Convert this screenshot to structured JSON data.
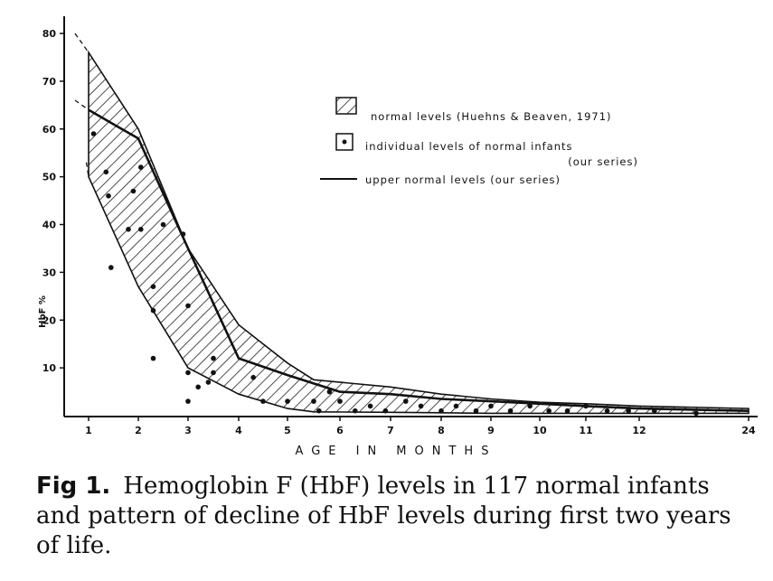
{
  "chart_data": {
    "type": "area",
    "xlabel": "AGE IN MONTHS",
    "ylabel": "HbF %",
    "x_ticks": [
      {
        "label": "1",
        "value": 1
      },
      {
        "label": "2",
        "value": 2
      },
      {
        "label": "3",
        "value": 3
      },
      {
        "label": "4",
        "value": 4
      },
      {
        "label": "5",
        "value": 5
      },
      {
        "label": "6",
        "value": 6
      },
      {
        "label": "7",
        "value": 7
      },
      {
        "label": "8",
        "value": 8
      },
      {
        "label": "9",
        "value": 9
      },
      {
        "label": "10",
        "value": 10
      },
      {
        "label": "11",
        "value": 11
      },
      {
        "label": "12",
        "value": 12
      },
      {
        "label": "24",
        "value": 24
      }
    ],
    "y_ticks": [
      10,
      20,
      30,
      40,
      50,
      60,
      70,
      80
    ],
    "ylim": [
      0,
      82
    ],
    "legend": {
      "band": "normal levels (Huehns & Beaven, 1971)",
      "dots_line1": "individual levels of normal infants",
      "dots_line2": "(our series)",
      "line": "upper normal levels (our series)"
    },
    "series": [
      {
        "name": "normal levels (Huehns & Beaven, 1971)",
        "kind": "band",
        "upper": [
          [
            1,
            76
          ],
          [
            2,
            60
          ],
          [
            3,
            35
          ],
          [
            4,
            19
          ],
          [
            5,
            11
          ],
          [
            5.5,
            7.5
          ],
          [
            7,
            6
          ],
          [
            8,
            4.5
          ],
          [
            9,
            3.5
          ],
          [
            10,
            2.8
          ],
          [
            11,
            2.5
          ],
          [
            12,
            2.0
          ],
          [
            24,
            1.5
          ]
        ],
        "lower": [
          [
            1,
            50
          ],
          [
            2,
            27
          ],
          [
            3,
            10
          ],
          [
            4,
            4.5
          ],
          [
            5,
            1.5
          ],
          [
            5.5,
            0.8
          ],
          [
            7,
            0.7
          ],
          [
            8,
            0.6
          ],
          [
            9,
            0.5
          ],
          [
            10,
            0.5
          ],
          [
            11,
            0.5
          ],
          [
            12,
            0.5
          ],
          [
            24,
            0.5
          ]
        ]
      },
      {
        "name": "upper normal levels (our series)",
        "kind": "line",
        "points": [
          [
            1,
            64
          ],
          [
            1.5,
            61
          ],
          [
            2,
            58
          ],
          [
            3,
            35
          ],
          [
            4,
            12
          ],
          [
            5,
            8.5
          ],
          [
            6,
            5
          ],
          [
            7,
            4.5
          ],
          [
            8,
            3.5
          ],
          [
            9,
            3
          ],
          [
            10,
            2.5
          ],
          [
            11,
            2
          ],
          [
            12,
            1.5
          ],
          [
            24,
            1
          ]
        ]
      },
      {
        "name": "individual levels of normal infants (our series)",
        "kind": "scatter",
        "points": [
          [
            1.1,
            59
          ],
          [
            1.35,
            51
          ],
          [
            1.4,
            46
          ],
          [
            1.45,
            31
          ],
          [
            1.8,
            39
          ],
          [
            1.9,
            47
          ],
          [
            2.05,
            52
          ],
          [
            2.05,
            39
          ],
          [
            2.3,
            27
          ],
          [
            2.3,
            22
          ],
          [
            2.3,
            12
          ],
          [
            2.5,
            40
          ],
          [
            2.9,
            38
          ],
          [
            3.0,
            23
          ],
          [
            3.0,
            9
          ],
          [
            3.0,
            3
          ],
          [
            3.2,
            6
          ],
          [
            3.4,
            7
          ],
          [
            3.5,
            12
          ],
          [
            3.5,
            9
          ],
          [
            4.3,
            8
          ],
          [
            4.5,
            3
          ],
          [
            5.0,
            3
          ],
          [
            5.5,
            3
          ],
          [
            5.6,
            1
          ],
          [
            5.8,
            5
          ],
          [
            6.0,
            3
          ],
          [
            6.3,
            1
          ],
          [
            6.6,
            2
          ],
          [
            6.9,
            1
          ],
          [
            7.3,
            3
          ],
          [
            7.6,
            2
          ],
          [
            8.0,
            1
          ],
          [
            8.3,
            2
          ],
          [
            8.7,
            1
          ],
          [
            9.0,
            2
          ],
          [
            9.4,
            1
          ],
          [
            9.8,
            2
          ],
          [
            10.2,
            1
          ],
          [
            10.6,
            1
          ],
          [
            11.0,
            2
          ],
          [
            11.4,
            1
          ],
          [
            11.8,
            1
          ],
          [
            12.4,
            1
          ],
          [
            13.5,
            0.5
          ]
        ]
      }
    ],
    "extrapolation_dashes": [
      [
        [
          0.7,
          80
        ],
        [
          1,
          76
        ]
      ],
      [
        [
          0.7,
          66
        ],
        [
          1,
          64
        ]
      ],
      [
        [
          0.95,
          53
        ],
        [
          1,
          50
        ]
      ]
    ]
  },
  "caption": {
    "label": "Fig 1.",
    "text": "Hemoglobin F (HbF) levels in 117 normal infants and pattern of decline of HbF levels during first two years of life."
  }
}
